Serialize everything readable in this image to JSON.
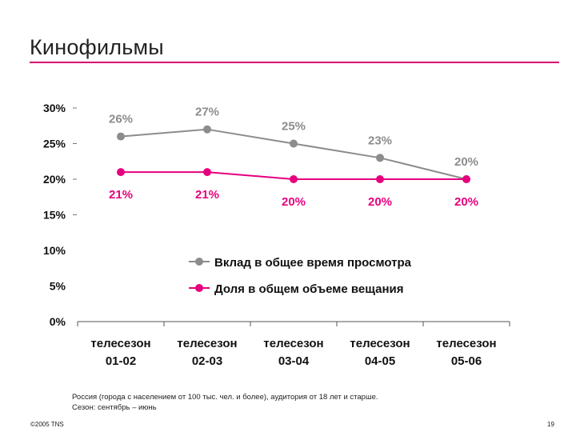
{
  "page": {
    "title": "Кинофильмы",
    "note_line1": "Россия (города с населением от 100 тыс. чел. и более), аудитория от 18 лет и старше.",
    "note_line2": "Сезон: сентябрь – июнь",
    "copyright": "©2005 TNS",
    "page_number": "19"
  },
  "chart_data": {
    "type": "line",
    "categories": [
      [
        "телесезон",
        "01-02"
      ],
      [
        "телесезон",
        "02-03"
      ],
      [
        "телесезон",
        "03-04"
      ],
      [
        "телесезон",
        "04-05"
      ],
      [
        "телесезон",
        "05-06"
      ]
    ],
    "yticks": [
      "30%",
      "25%",
      "20%",
      "15%",
      "10%",
      "5%",
      "0%"
    ],
    "ylim": [
      0,
      30
    ],
    "series": [
      {
        "name": "Вклад в общее время просмотра",
        "values": [
          26,
          27,
          25,
          23,
          20
        ],
        "labels": [
          "26%",
          "27%",
          "25%",
          "23%",
          "20%"
        ],
        "color": "#8c8c8c"
      },
      {
        "name": "Доля в общем объеме вещания",
        "values": [
          21,
          21,
          20,
          20,
          20
        ],
        "labels": [
          "21%",
          "21%",
          "20%",
          "20%",
          "20%"
        ],
        "color": "#e6007e"
      }
    ],
    "legend_position": "center-right",
    "grid": false
  }
}
